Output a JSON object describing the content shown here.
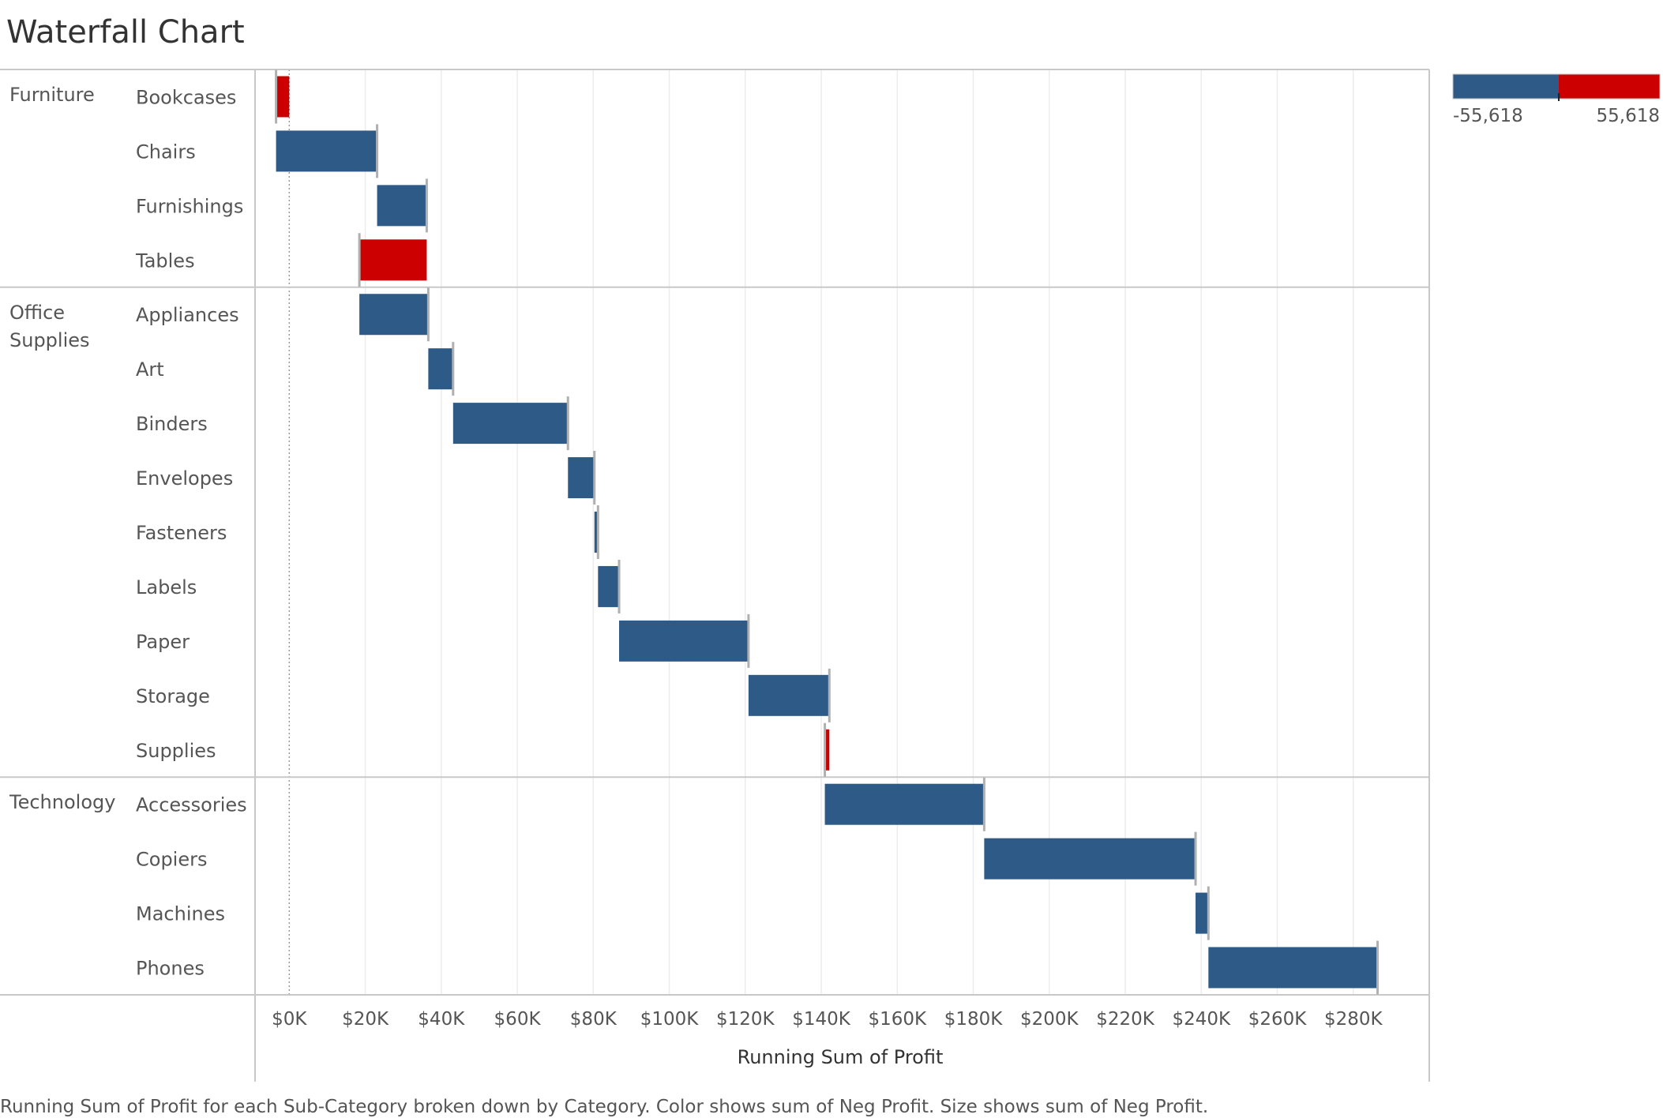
{
  "chart_data": {
    "type": "bar",
    "subtype": "waterfall (gantt bars on running sum)",
    "title": "Waterfall Chart",
    "xlabel": "Running Sum of Profit",
    "ylabel": "",
    "xlim": [
      -9000,
      300000
    ],
    "x_ticks": [
      0,
      20000,
      40000,
      60000,
      80000,
      100000,
      120000,
      140000,
      160000,
      180000,
      200000,
      220000,
      240000,
      260000,
      280000
    ],
    "x_tick_labels": [
      "$0K",
      "$20K",
      "$40K",
      "$60K",
      "$80K",
      "$100K",
      "$120K",
      "$140K",
      "$160K",
      "$180K",
      "$200K",
      "$220K",
      "$240K",
      "$260K",
      "$280K"
    ],
    "grid": true,
    "categories": [
      "Furniture",
      "Office Supplies",
      "Technology"
    ],
    "rows": [
      {
        "category": "Furniture",
        "subcategory": "Bookcases",
        "profit": -3473,
        "running_sum": -3473
      },
      {
        "category": "Furniture",
        "subcategory": "Chairs",
        "profit": 26590,
        "running_sum": 23117
      },
      {
        "category": "Furniture",
        "subcategory": "Furnishings",
        "profit": 13059,
        "running_sum": 36176
      },
      {
        "category": "Furniture",
        "subcategory": "Tables",
        "profit": -17725,
        "running_sum": 18451
      },
      {
        "category": "Office Supplies",
        "subcategory": "Appliances",
        "profit": 18138,
        "running_sum": 36589
      },
      {
        "category": "Office Supplies",
        "subcategory": "Art",
        "profit": 6528,
        "running_sum": 43117
      },
      {
        "category": "Office Supplies",
        "subcategory": "Binders",
        "profit": 30222,
        "running_sum": 73339
      },
      {
        "category": "Office Supplies",
        "subcategory": "Envelopes",
        "profit": 6964,
        "running_sum": 80303
      },
      {
        "category": "Office Supplies",
        "subcategory": "Fasteners",
        "profit": 950,
        "running_sum": 81253
      },
      {
        "category": "Office Supplies",
        "subcategory": "Labels",
        "profit": 5546,
        "running_sum": 86799
      },
      {
        "category": "Office Supplies",
        "subcategory": "Paper",
        "profit": 34054,
        "running_sum": 120853
      },
      {
        "category": "Office Supplies",
        "subcategory": "Storage",
        "profit": 21279,
        "running_sum": 142132
      },
      {
        "category": "Office Supplies",
        "subcategory": "Supplies",
        "profit": -1189,
        "running_sum": 140943
      },
      {
        "category": "Technology",
        "subcategory": "Accessories",
        "profit": 41937,
        "running_sum": 182880
      },
      {
        "category": "Technology",
        "subcategory": "Copiers",
        "profit": 55618,
        "running_sum": 238498
      },
      {
        "category": "Technology",
        "subcategory": "Machines",
        "profit": 3385,
        "running_sum": 241883
      },
      {
        "category": "Technology",
        "subcategory": "Phones",
        "profit": 44516,
        "running_sum": 286399
      }
    ],
    "legend": {
      "position": "top-right",
      "min_label": "-55,618",
      "max_label": "55,618",
      "colors": [
        "#2e5a87",
        "#cc0000"
      ]
    },
    "caption": "Running Sum of Profit for each Sub-Category broken down by Category.  Color shows sum of Neg Profit.  Size shows sum of Neg Profit."
  },
  "colors": {
    "positive": "#2e5a87",
    "negative": "#cc0000",
    "grid": "#ececec",
    "divider": "#c8c8c8",
    "text": "#555555"
  }
}
